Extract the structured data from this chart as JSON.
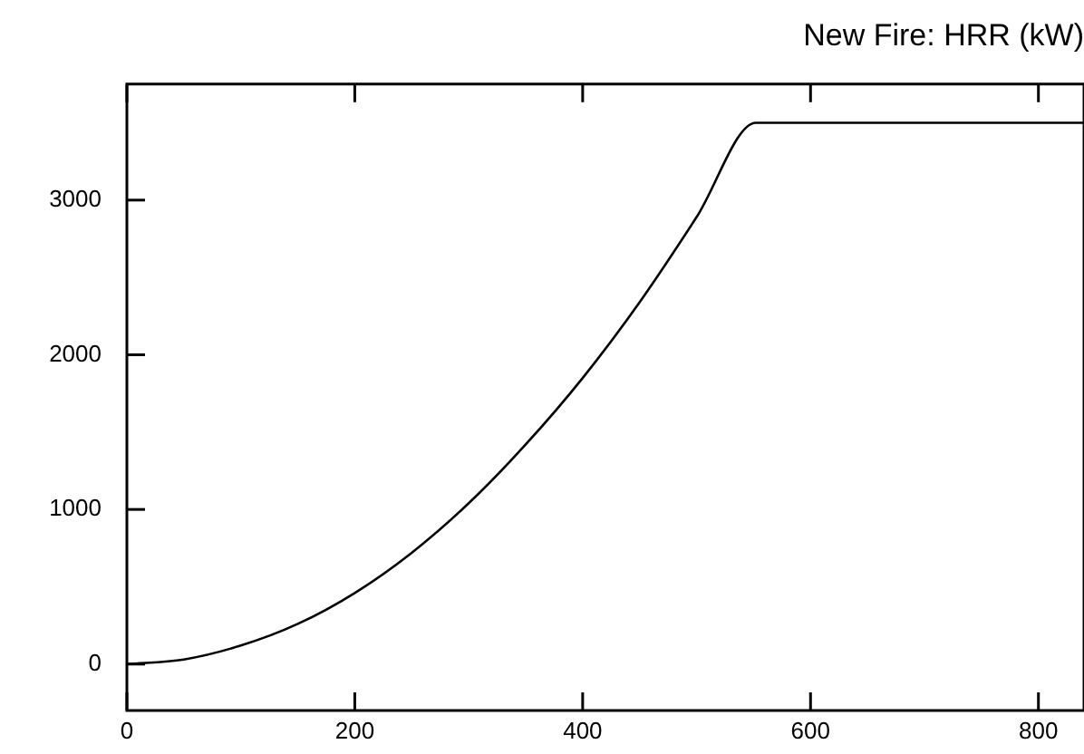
{
  "chart_data": {
    "type": "line",
    "title": "New Fire: HRR (kW)",
    "x": [
      0,
      50,
      100,
      150,
      200,
      250,
      300,
      350,
      400,
      450,
      500,
      552,
      840
    ],
    "series": [
      {
        "color": "#000000",
        "values": [
          0,
          30,
          120,
          260,
          460,
          720,
          1040,
          1420,
          1850,
          2340,
          2890,
          3500,
          3500
        ]
      }
    ],
    "xlim": [
      0,
      840
    ],
    "xticks": [
      0,
      200,
      400,
      600,
      800
    ],
    "ylim": [
      -300,
      3750
    ],
    "yticks": [
      0,
      1000,
      2000,
      3000
    ],
    "grid": false,
    "legend": false,
    "marker": "none",
    "line_style": "solid"
  }
}
